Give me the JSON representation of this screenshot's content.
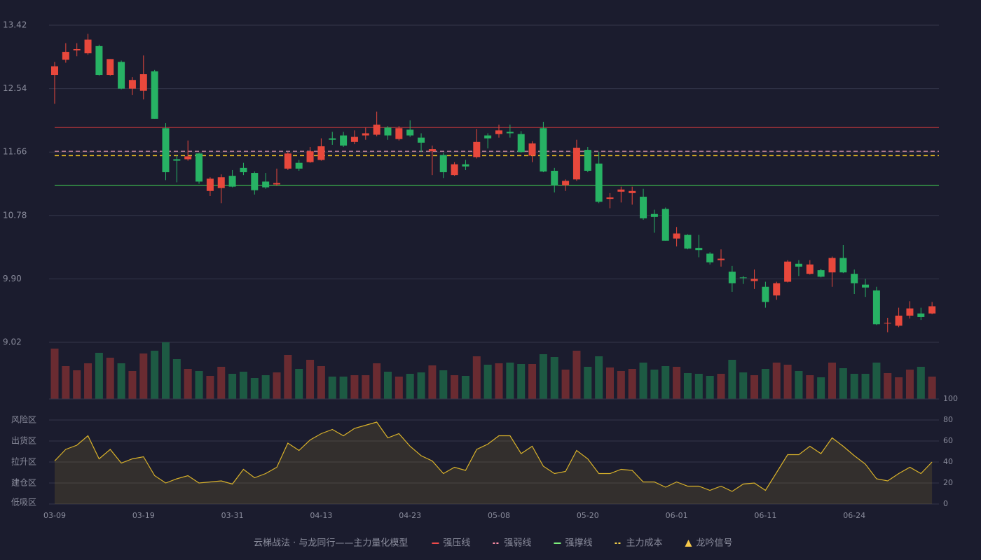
{
  "chart_data": [
    {
      "type": "candlestick",
      "categories": [
        "03-09",
        null,
        null,
        null,
        null,
        null,
        null,
        null,
        "03-19",
        null,
        null,
        null,
        null,
        null,
        null,
        null,
        "03-31",
        null,
        null,
        null,
        null,
        null,
        null,
        null,
        "04-13",
        null,
        null,
        null,
        null,
        null,
        null,
        null,
        "04-23",
        null,
        null,
        null,
        null,
        null,
        null,
        null,
        "05-08",
        null,
        null,
        null,
        null,
        null,
        null,
        null,
        "05-20",
        null,
        null,
        null,
        null,
        null,
        null,
        null,
        "06-01",
        null,
        null,
        null,
        null,
        null,
        null,
        null,
        "06-11",
        null,
        null,
        null,
        null,
        null,
        null,
        null,
        "06-24",
        null,
        null,
        null,
        null,
        null,
        null,
        null
      ],
      "open": [
        12.73,
        12.94,
        13.07,
        13.03,
        13.13,
        12.73,
        12.91,
        12.54,
        12.51,
        12.78,
        11.99,
        11.56,
        11.56,
        11.64,
        11.12,
        11.16,
        11.33,
        11.44,
        11.37,
        11.25,
        11.21,
        11.43,
        11.51,
        11.52,
        11.55,
        11.85,
        11.89,
        11.8,
        11.89,
        11.9,
        12.0,
        11.84,
        11.97,
        11.86,
        11.67,
        11.62,
        11.34,
        11.49,
        11.59,
        11.89,
        11.91,
        11.94,
        11.91,
        11.61,
        11.99,
        11.4,
        11.2,
        11.28,
        11.69,
        11.5,
        11.01,
        11.11,
        11.09,
        11.04,
        10.8,
        10.87,
        10.46,
        10.51,
        10.33,
        10.25,
        10.16,
        10.0,
        9.92,
        9.87,
        9.79,
        9.67,
        9.86,
        10.11,
        9.97,
        10.02,
        9.99,
        10.19,
        9.97,
        9.82,
        9.74,
        9.28,
        9.25,
        9.39,
        9.42,
        9.42
      ],
      "high": [
        12.91,
        13.17,
        13.17,
        13.3,
        13.15,
        12.95,
        12.93,
        12.7,
        13.0,
        12.8,
        12.06,
        11.61,
        11.82,
        11.65,
        11.31,
        11.35,
        11.41,
        11.51,
        11.39,
        11.37,
        11.43,
        11.66,
        11.55,
        11.73,
        11.85,
        11.94,
        11.94,
        11.96,
        12.0,
        12.22,
        12.02,
        12.02,
        12.1,
        11.92,
        11.75,
        11.65,
        11.52,
        11.55,
        11.98,
        11.92,
        12.04,
        12.04,
        11.95,
        11.81,
        12.08,
        11.44,
        11.28,
        11.83,
        11.73,
        11.66,
        11.09,
        11.18,
        11.18,
        11.15,
        10.86,
        10.89,
        10.62,
        10.52,
        10.51,
        10.27,
        10.31,
        10.08,
        9.94,
        10.03,
        9.86,
        9.86,
        10.16,
        10.16,
        10.16,
        10.04,
        10.21,
        10.37,
        10.03,
        9.9,
        9.79,
        9.36,
        9.5,
        9.59,
        9.5,
        9.58
      ],
      "low": [
        12.33,
        12.9,
        12.99,
        13.01,
        12.72,
        12.72,
        12.53,
        12.45,
        12.39,
        12.12,
        11.27,
        11.24,
        11.54,
        11.22,
        11.05,
        10.95,
        11.17,
        11.34,
        11.07,
        11.15,
        11.19,
        11.41,
        11.4,
        11.51,
        11.54,
        11.76,
        11.73,
        11.77,
        11.83,
        11.88,
        11.83,
        11.82,
        11.87,
        11.66,
        11.34,
        11.3,
        11.33,
        11.41,
        11.57,
        11.71,
        11.86,
        11.86,
        11.65,
        11.52,
        11.38,
        11.1,
        11.12,
        11.26,
        11.38,
        10.95,
        10.88,
        10.96,
        10.93,
        10.72,
        10.54,
        10.43,
        10.35,
        10.31,
        10.2,
        10.1,
        10.07,
        9.72,
        9.83,
        9.76,
        9.5,
        9.61,
        9.85,
        9.94,
        9.96,
        9.92,
        9.79,
        9.98,
        9.69,
        9.65,
        9.26,
        9.16,
        9.23,
        9.35,
        9.33,
        9.41
      ],
      "close": [
        12.85,
        13.05,
        13.09,
        13.22,
        12.73,
        12.95,
        12.54,
        12.66,
        12.74,
        12.12,
        11.38,
        11.54,
        11.6,
        11.25,
        11.29,
        11.31,
        11.18,
        11.38,
        11.13,
        11.17,
        11.23,
        11.64,
        11.43,
        11.67,
        11.74,
        11.83,
        11.75,
        11.87,
        11.92,
        12.04,
        11.89,
        11.99,
        11.89,
        11.79,
        11.7,
        11.38,
        11.49,
        11.46,
        11.8,
        11.85,
        11.96,
        11.92,
        11.66,
        11.78,
        11.39,
        11.2,
        11.26,
        11.72,
        11.4,
        10.97,
        11.03,
        11.14,
        11.12,
        10.74,
        10.76,
        10.43,
        10.53,
        10.32,
        10.3,
        10.13,
        10.18,
        9.84,
        9.91,
        9.9,
        9.58,
        9.84,
        10.14,
        10.07,
        10.1,
        9.93,
        10.19,
        9.99,
        9.84,
        9.78,
        9.27,
        9.29,
        9.39,
        9.49,
        9.37,
        9.52
      ],
      "up_color": "#e8483c",
      "down_color": "#27b264",
      "ylim": [
        9.02,
        13.42
      ],
      "yticks": [
        9.02,
        {
          "value": 9.9,
          "label": "9.90"
        },
        10.78,
        11.66,
        12.54,
        13.42
      ],
      "grid": true,
      "levels": [
        {
          "name": "强压线",
          "value": 12.0,
          "color": "#c8383c",
          "legend_color": "#f04a4a",
          "style": "solid"
        },
        {
          "name": "强弱线",
          "value": 11.67,
          "color": "#b07890",
          "legend_color": "#ff8fa8",
          "style": "dashed"
        },
        {
          "name": "强撑线",
          "value": 11.2,
          "color": "#3fc24f",
          "legend_color": "#7cf07c",
          "style": "solid"
        },
        {
          "name": "主力成本",
          "value": 11.61,
          "color": "#f0c020",
          "legend_color": "#f7d34a",
          "style": "dashed"
        }
      ]
    },
    {
      "type": "bar",
      "values": [
        72,
        47,
        41,
        51,
        66,
        59,
        51,
        40,
        65,
        69,
        81,
        57,
        43,
        40,
        33,
        46,
        36,
        39,
        30,
        34,
        38,
        63,
        43,
        56,
        47,
        32,
        32,
        34,
        34,
        51,
        39,
        32,
        36,
        38,
        48,
        41,
        34,
        33,
        61,
        49,
        51,
        52,
        50,
        50,
        64,
        60,
        42,
        69,
        46,
        61,
        45,
        40,
        43,
        52,
        42,
        47,
        46,
        37,
        36,
        33,
        36,
        56,
        38,
        34,
        43,
        52,
        49,
        40,
        34,
        31,
        52,
        44,
        36,
        36,
        52,
        37,
        31,
        42,
        46,
        32
      ],
      "up_color": "#6a2b31",
      "down_color": "#1d5a43"
    },
    {
      "type": "line",
      "values": [
        41,
        52,
        56,
        65,
        43,
        52,
        39,
        43,
        45,
        27,
        20,
        24,
        27,
        20,
        21,
        22,
        19,
        33,
        25,
        29,
        35,
        58,
        51,
        61,
        67,
        71,
        65,
        72,
        75,
        78,
        63,
        67,
        55,
        46,
        41,
        29,
        35,
        32,
        52,
        57,
        65,
        65,
        48,
        55,
        36,
        29,
        31,
        51,
        43,
        29,
        29,
        33,
        32,
        21,
        21,
        16,
        21,
        17,
        17,
        13,
        17,
        12,
        19,
        20,
        13,
        30,
        47,
        47,
        55,
        48,
        63,
        55,
        46,
        38,
        24,
        22,
        29,
        35,
        29,
        40
      ],
      "color": "#d9b22a",
      "ylim": [
        0,
        100
      ],
      "yticks": [
        0,
        20,
        40,
        60,
        80,
        100
      ],
      "ytick_colors": [
        "#e8384f",
        "#e86a8a",
        "#4f8ff0",
        "#e040e0",
        "#f0a030",
        "#40e060"
      ],
      "zones": [
        {
          "label": "风险区",
          "value": 80,
          "color": "#f0a030"
        },
        {
          "label": "出货区",
          "value": 60,
          "color": "#e040e0"
        },
        {
          "label": "拉升区",
          "value": 40,
          "color": "#4f8ff0"
        },
        {
          "label": "建仓区",
          "value": 20,
          "color": "#e8506a"
        },
        {
          "label": "低吸区",
          "value": 0,
          "color": "#e8384f"
        }
      ]
    }
  ],
  "legend": {
    "title": "云梯战法 · 与龙同行——主力量化模型",
    "title_color": "#e8c06a",
    "signal": {
      "name": "龙吟信号",
      "color": "#f7c94a",
      "symbol": "triangle"
    }
  }
}
